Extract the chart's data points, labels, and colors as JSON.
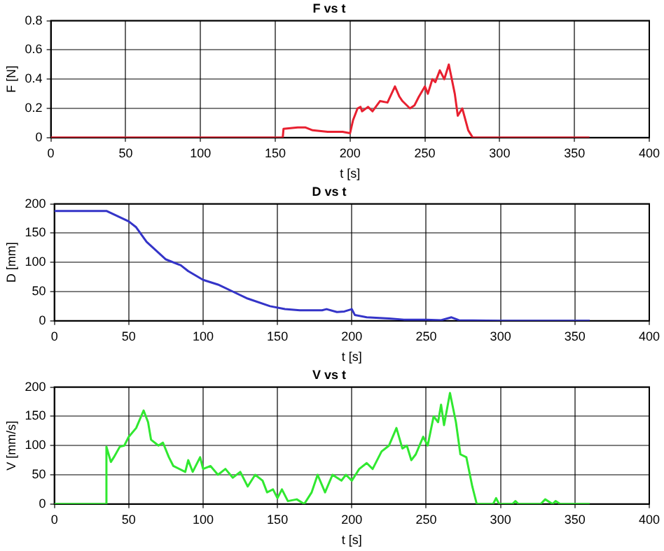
{
  "chart_data": [
    {
      "type": "line",
      "title": "F vs t",
      "xlabel": "t [s]",
      "ylabel": "F [N]",
      "xlim": [
        0,
        400
      ],
      "xticks": [
        0,
        50,
        100,
        150,
        200,
        250,
        300,
        350,
        400
      ],
      "ylim": [
        0,
        0.8
      ],
      "yticks": [
        0,
        0.2,
        0.4,
        0.6,
        0.8
      ],
      "grid": true,
      "legend": false,
      "x": [
        0,
        155,
        155.5,
        165,
        170,
        175,
        185,
        195,
        200,
        202,
        205,
        207,
        208,
        212,
        215,
        220,
        225,
        230,
        233,
        235,
        240,
        243,
        246,
        250,
        252,
        255,
        257,
        260,
        263,
        266,
        270,
        272,
        275,
        279,
        282,
        360
      ],
      "series": [
        {
          "color": "#e82030",
          "values": [
            0,
            0,
            0.06,
            0.07,
            0.07,
            0.05,
            0.04,
            0.04,
            0.03,
            0.12,
            0.2,
            0.21,
            0.18,
            0.21,
            0.18,
            0.25,
            0.24,
            0.35,
            0.28,
            0.25,
            0.2,
            0.22,
            0.28,
            0.35,
            0.3,
            0.4,
            0.38,
            0.46,
            0.4,
            0.5,
            0.3,
            0.15,
            0.2,
            0.05,
            0,
            0
          ]
        }
      ]
    },
    {
      "type": "line",
      "title": "D vs t",
      "xlabel": "t [s]",
      "ylabel": "D [mm]",
      "xlim": [
        0,
        400
      ],
      "xticks": [
        0,
        50,
        100,
        150,
        200,
        250,
        300,
        350,
        400
      ],
      "ylim": [
        0,
        200
      ],
      "yticks": [
        0,
        50,
        100,
        150,
        200
      ],
      "grid": true,
      "legend": false,
      "x": [
        0,
        35,
        50,
        55,
        62,
        75,
        85,
        90,
        100,
        110,
        120,
        130,
        145,
        155,
        165,
        180,
        183,
        190,
        195,
        200,
        202,
        210,
        225,
        235,
        250,
        260,
        267,
        272,
        300,
        360
      ],
      "series": [
        {
          "color": "#3434c8",
          "values": [
            188,
            188,
            170,
            160,
            135,
            105,
            95,
            85,
            70,
            62,
            50,
            38,
            25,
            20,
            18,
            18,
            20,
            15,
            16,
            20,
            10,
            6,
            4,
            2,
            2,
            1,
            6,
            1,
            0,
            0
          ]
        }
      ]
    },
    {
      "type": "line",
      "title": "V vs t",
      "xlabel": "t [s]",
      "ylabel": "V [mm/s]",
      "xlim": [
        0,
        400
      ],
      "xticks": [
        0,
        50,
        100,
        150,
        200,
        250,
        300,
        350,
        400
      ],
      "ylim": [
        0,
        200
      ],
      "yticks": [
        0,
        50,
        100,
        150,
        200
      ],
      "grid": true,
      "legend": false,
      "x": [
        0,
        34.5,
        35,
        38,
        40,
        44,
        47,
        50,
        55,
        60,
        63,
        65,
        70,
        73,
        77,
        80,
        88,
        90,
        93,
        98,
        100,
        105,
        110,
        115,
        120,
        125,
        130,
        135,
        140,
        143,
        147,
        150,
        153,
        157,
        163,
        168,
        173,
        177,
        182,
        187,
        193,
        196,
        200,
        205,
        210,
        214,
        220,
        225,
        230,
        234,
        237,
        240,
        243,
        248,
        251,
        255,
        258,
        260,
        262,
        266,
        270,
        273,
        277,
        281,
        284,
        295,
        297,
        299,
        308,
        310,
        312,
        327,
        330,
        335,
        337,
        340,
        360
      ],
      "series": [
        {
          "color": "#30e830",
          "values": [
            0,
            0,
            98,
            72,
            80,
            98,
            100,
            115,
            130,
            160,
            140,
            110,
            100,
            105,
            80,
            65,
            55,
            75,
            55,
            80,
            60,
            65,
            50,
            60,
            45,
            55,
            30,
            50,
            40,
            20,
            25,
            10,
            25,
            5,
            8,
            0,
            20,
            50,
            20,
            50,
            40,
            50,
            40,
            60,
            70,
            60,
            90,
            100,
            130,
            95,
            100,
            75,
            85,
            115,
            100,
            150,
            140,
            170,
            135,
            190,
            140,
            85,
            80,
            30,
            0,
            0,
            10,
            0,
            0,
            5,
            0,
            0,
            8,
            0,
            5,
            0,
            0
          ]
        }
      ]
    }
  ]
}
